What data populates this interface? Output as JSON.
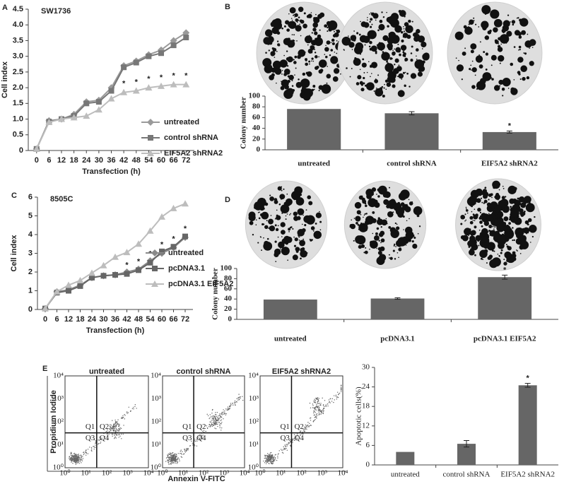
{
  "chart_data": [
    {
      "type": "line",
      "panel": "A",
      "title": "SW1736",
      "xlabel": "Transfection (h)",
      "ylabel": "Cell index",
      "x": [
        0,
        6,
        12,
        18,
        24,
        30,
        36,
        42,
        48,
        54,
        60,
        66,
        72
      ],
      "xlim": [
        -4,
        76
      ],
      "xticks": [
        0,
        6,
        12,
        18,
        24,
        30,
        36,
        42,
        48,
        54,
        60,
        66,
        72
      ],
      "ylim": [
        0,
        4.5
      ],
      "yticks": [
        0,
        0.5,
        {
          "value": 1,
          "label": "1.0"
        },
        1.5,
        {
          "value": 2,
          "label": "2.0"
        },
        2.5,
        {
          "value": 3,
          "label": "3.0"
        },
        3.5,
        {
          "value": 4,
          "label": "4.0"
        },
        4.5
      ],
      "legend": "lower right",
      "series": [
        {
          "name": "untreated",
          "color": "#9a9a9a",
          "marker": "diamond",
          "values": [
            0.05,
            0.95,
            1.0,
            1.15,
            1.55,
            1.6,
            2.0,
            2.7,
            2.85,
            3.05,
            3.2,
            3.5,
            3.75
          ]
        },
        {
          "name": "control shRNA",
          "color": "#777777",
          "marker": "square",
          "values": [
            0.05,
            0.92,
            1.0,
            1.1,
            1.5,
            1.55,
            1.9,
            2.65,
            2.8,
            3.0,
            3.1,
            3.35,
            3.6
          ]
        },
        {
          "name": "EIF5A2 shRNA2",
          "color": "#bdbdbd",
          "marker": "triangle",
          "values": [
            0.05,
            0.9,
            1.0,
            1.05,
            1.1,
            1.3,
            1.65,
            1.85,
            1.9,
            2.0,
            2.05,
            2.1,
            2.1
          ]
        }
      ],
      "significant": [
        false,
        false,
        false,
        false,
        false,
        false,
        false,
        true,
        true,
        true,
        true,
        true,
        true
      ],
      "significance_label": "*"
    },
    {
      "type": "bar",
      "panel": "B",
      "ylabel": "Colony number",
      "color": "#666666",
      "categories": [
        "untreated",
        "control shRNA",
        "EIF5A2 shRNA2"
      ],
      "values": [
        76,
        68,
        33
      ],
      "errors": [
        0,
        3,
        2
      ],
      "ylim": [
        0,
        100
      ],
      "yticks": [
        0,
        20,
        40,
        60,
        80,
        100
      ],
      "significant": [
        false,
        false,
        true
      ],
      "significance_label": "*"
    },
    {
      "type": "line",
      "panel": "C",
      "title": "8505C",
      "xlabel": "Transfection (h)",
      "ylabel": "Cell index",
      "x": [
        0,
        6,
        12,
        18,
        24,
        30,
        36,
        42,
        48,
        54,
        60,
        66,
        72
      ],
      "xlim": [
        -4,
        76
      ],
      "xticks": [
        0,
        6,
        12,
        18,
        24,
        30,
        36,
        42,
        48,
        54,
        60,
        66,
        72
      ],
      "ylim": [
        0,
        6
      ],
      "yticks": [
        0,
        1,
        2,
        3,
        4,
        5,
        6
      ],
      "legend": "lower right",
      "series": [
        {
          "name": "untreated",
          "color": "#8a8a8a",
          "marker": "diamond",
          "values": [
            0.05,
            0.95,
            1.05,
            1.3,
            1.7,
            1.8,
            1.85,
            2.0,
            2.15,
            2.6,
            3.0,
            3.3,
            3.85
          ]
        },
        {
          "name": "pcDNA3.1",
          "color": "#666666",
          "marker": "square",
          "values": [
            0.05,
            0.9,
            1.0,
            1.25,
            1.7,
            1.8,
            1.85,
            1.9,
            2.1,
            2.5,
            3.1,
            3.35,
            3.9
          ]
        },
        {
          "name": "pcDNA3.1 EIF5A2",
          "color": "#bdbdbd",
          "marker": "triangle",
          "values": [
            0.05,
            0.95,
            1.3,
            1.55,
            1.95,
            2.35,
            2.8,
            3.05,
            3.5,
            4.2,
            4.95,
            5.4,
            5.65
          ]
        }
      ],
      "significant": [
        false,
        false,
        false,
        false,
        false,
        false,
        false,
        true,
        true,
        true,
        true,
        true,
        true
      ],
      "significance_label": "*"
    },
    {
      "type": "bar",
      "panel": "D",
      "ylabel": "Colony number",
      "color": "#666666",
      "categories": [
        "untreated",
        "pcDNA3.1",
        "pcDNA3.1 EIF5A2"
      ],
      "values": [
        39,
        41,
        83
      ],
      "errors": [
        0,
        1.5,
        4
      ],
      "ylim": [
        0,
        100
      ],
      "yticks": [
        0,
        20,
        40,
        60,
        80,
        100
      ],
      "significant": [
        false,
        false,
        true
      ],
      "significance_label": "*"
    },
    {
      "type": "flow_cytometry",
      "panel": "E",
      "samples": [
        "untreated",
        "control shRNA",
        "EIF5A2 shRNA2"
      ],
      "xlabel": "Annexin V-FITC",
      "ylabel": "Propidium Iodide",
      "quadrants": [
        "Q1",
        "Q2",
        "Q3",
        "Q4"
      ],
      "decade_labels": [
        "10⁰",
        "10¹",
        "10²",
        "10³",
        "10⁴"
      ]
    },
    {
      "type": "bar",
      "ylabel": "Apoptotic cells(%)",
      "color": "#666666",
      "categories": [
        "untreated",
        "control shRNA",
        "EIF5A2 shRNA2"
      ],
      "values": [
        4,
        6.5,
        24.5
      ],
      "errors": [
        0,
        1,
        0.6
      ],
      "ylim": [
        0,
        30
      ],
      "yticks": [
        0,
        6,
        12,
        18,
        24,
        30
      ],
      "significant": [
        false,
        false,
        true
      ],
      "significance_label": "*"
    }
  ]
}
